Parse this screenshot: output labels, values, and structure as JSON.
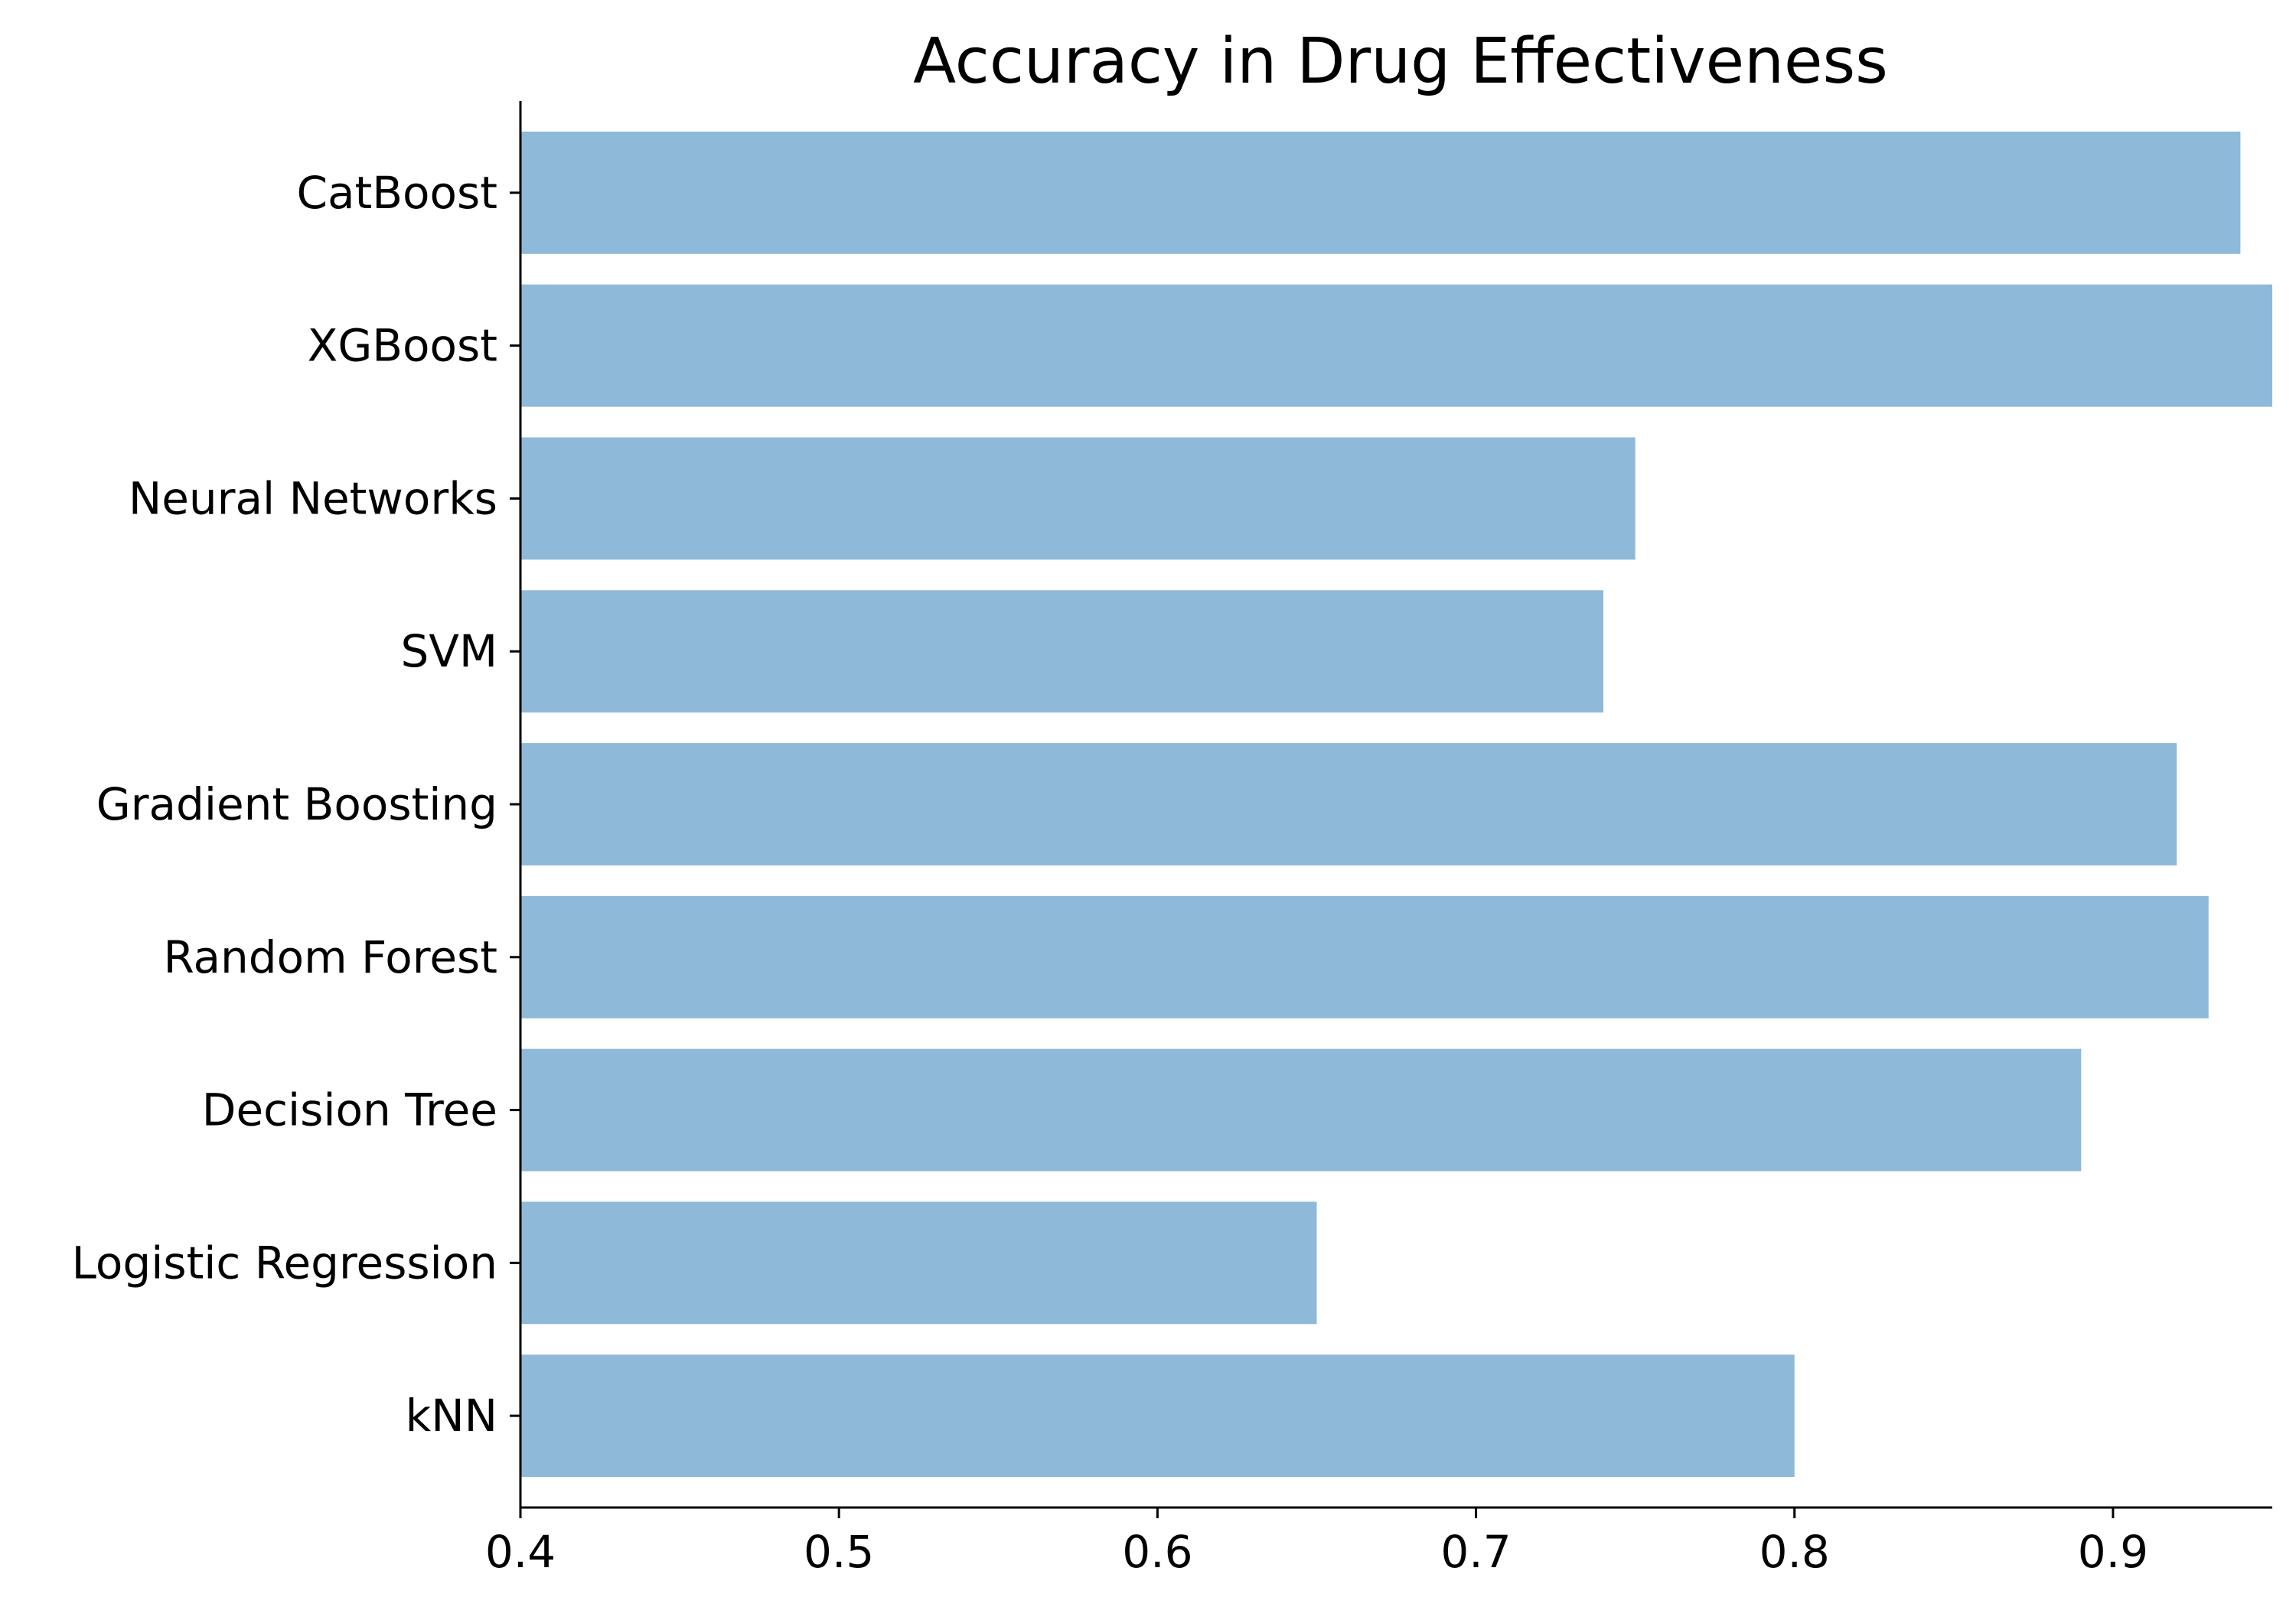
{
  "chart_data": {
    "type": "bar",
    "orientation": "horizontal",
    "title": "Accuracy in Drug Effectiveness",
    "xlabel": "",
    "ylabel": "",
    "categories": [
      "kNN",
      "Logistic Regression",
      "Decision Tree",
      "Random Forest",
      "Gradient Boosting",
      "SVM",
      "Neural Networks",
      "XGBoost",
      "CatBoost"
    ],
    "values": [
      0.8,
      0.65,
      0.89,
      0.93,
      0.92,
      0.74,
      0.75,
      0.95,
      0.94
    ],
    "xlim": [
      0.4,
      0.95
    ],
    "xticks": [
      0.4,
      0.5,
      0.6,
      0.7,
      0.8,
      0.9
    ],
    "xtick_labels": [
      "0.4",
      "0.5",
      "0.6",
      "0.7",
      "0.8",
      "0.9"
    ],
    "bar_color": "#8eb9d9",
    "grid": false,
    "legend": "none"
  }
}
